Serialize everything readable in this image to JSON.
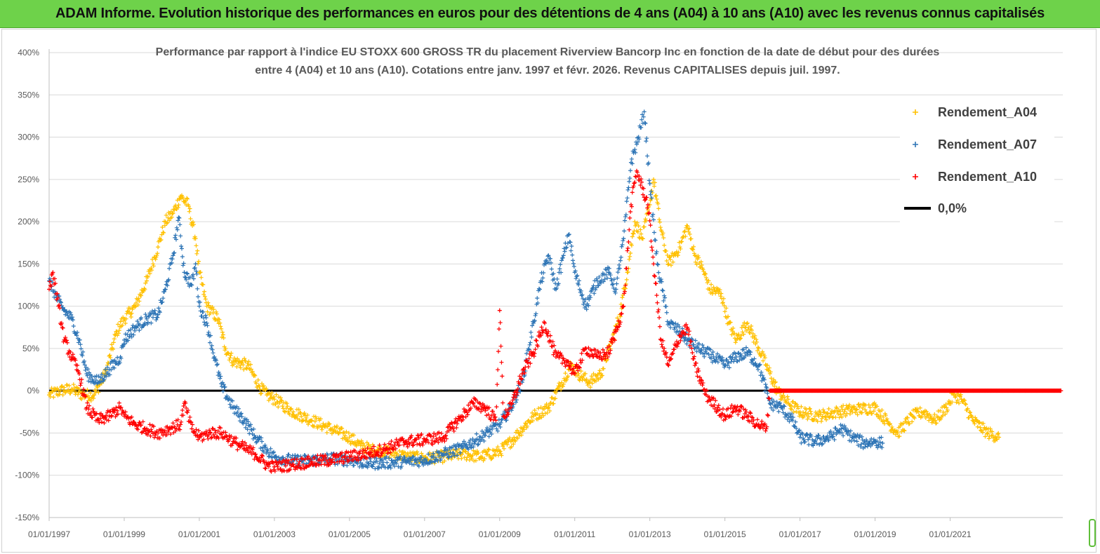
{
  "banner": {
    "text": "ADAM Informe. Evolution historique des performances en euros pour des détentions de 4 ans (A04) à 10 ans (A10) avec les revenus connus capitalisés"
  },
  "colors": {
    "banner": "#6ed24a",
    "A04": "#ffc000",
    "A07": "#2e75b6",
    "A10": "#ff0000",
    "zero": "#000000"
  },
  "chart_data": {
    "type": "scatter",
    "title_line1": "Performance par rapport à l'indice EU STOXX 600 GROSS TR  du placement Riverview Bancorp Inc en fonction de la date de début pour des durées",
    "title_line2": "entre 4 (A04) et 10 ans (A10). Cotations entre janv. 1997 et févr. 2026. Revenus CAPITALISES depuis juil. 1997.",
    "ylim": [
      -150,
      400
    ],
    "xlim": [
      1997.0,
      2024.0
    ],
    "y_ticks": [
      "-150%",
      "-100%",
      "-50%",
      "0%",
      "50%",
      "100%",
      "150%",
      "200%",
      "250%",
      "300%",
      "350%",
      "400%"
    ],
    "x_ticks": [
      "01/01/1997",
      "01/01/1999",
      "01/01/2001",
      "01/01/2003",
      "01/01/2005",
      "01/01/2007",
      "01/01/2009",
      "01/01/2011",
      "01/01/2013",
      "01/01/2015",
      "01/01/2017",
      "01/01/2019",
      "01/01/2021"
    ],
    "gridlines": "horizontal",
    "legend_position": "top-right",
    "series": [
      {
        "name": "Rendement_A04",
        "marker": "+",
        "points": [
          [
            1997.0,
            -5
          ],
          [
            1997.3,
            0
          ],
          [
            1997.6,
            2
          ],
          [
            1997.9,
            -5
          ],
          [
            1998.2,
            -5
          ],
          [
            1998.5,
            20
          ],
          [
            1998.8,
            70
          ],
          [
            1999.0,
            85
          ],
          [
            1999.3,
            100
          ],
          [
            1999.6,
            130
          ],
          [
            1999.9,
            170
          ],
          [
            2000.1,
            200
          ],
          [
            2000.3,
            210
          ],
          [
            2000.5,
            230
          ],
          [
            2000.7,
            220
          ],
          [
            2000.9,
            180
          ],
          [
            2001.0,
            140
          ],
          [
            2001.2,
            100
          ],
          [
            2001.5,
            85
          ],
          [
            2001.7,
            50
          ],
          [
            2001.9,
            35
          ],
          [
            2002.3,
            30
          ],
          [
            2002.6,
            5
          ],
          [
            2002.8,
            -5
          ],
          [
            2003.0,
            -10
          ],
          [
            2003.5,
            -25
          ],
          [
            2004.0,
            -35
          ],
          [
            2004.5,
            -45
          ],
          [
            2005.0,
            -55
          ],
          [
            2005.3,
            -65
          ],
          [
            2005.6,
            -70
          ],
          [
            2006.0,
            -72
          ],
          [
            2006.5,
            -78
          ],
          [
            2007.0,
            -80
          ],
          [
            2007.5,
            -78
          ],
          [
            2008.0,
            -75
          ],
          [
            2008.5,
            -78
          ],
          [
            2009.0,
            -72
          ],
          [
            2009.3,
            -60
          ],
          [
            2009.6,
            -45
          ],
          [
            2009.9,
            -30
          ],
          [
            2010.3,
            -20
          ],
          [
            2010.6,
            5
          ],
          [
            2010.9,
            30
          ],
          [
            2011.1,
            20
          ],
          [
            2011.4,
            10
          ],
          [
            2011.7,
            20
          ],
          [
            2012.0,
            60
          ],
          [
            2012.2,
            90
          ],
          [
            2012.4,
            140
          ],
          [
            2012.6,
            200
          ],
          [
            2012.8,
            180
          ],
          [
            2013.0,
            220
          ],
          [
            2013.1,
            250
          ],
          [
            2013.3,
            190
          ],
          [
            2013.5,
            150
          ],
          [
            2013.8,
            170
          ],
          [
            2014.0,
            195
          ],
          [
            2014.2,
            160
          ],
          [
            2014.4,
            145
          ],
          [
            2014.6,
            120
          ],
          [
            2014.9,
            115
          ],
          [
            2015.1,
            80
          ],
          [
            2015.3,
            60
          ],
          [
            2015.6,
            80
          ],
          [
            2015.9,
            50
          ],
          [
            2016.1,
            30
          ],
          [
            2016.4,
            0
          ],
          [
            2016.7,
            -15
          ],
          [
            2017.0,
            -25
          ],
          [
            2017.5,
            -30
          ],
          [
            2018.0,
            -25
          ],
          [
            2018.5,
            -22
          ],
          [
            2019.0,
            -20
          ],
          [
            2019.3,
            -35
          ],
          [
            2019.6,
            -50
          ],
          [
            2020.0,
            -30
          ],
          [
            2020.3,
            -25
          ],
          [
            2020.6,
            -35
          ],
          [
            2020.9,
            -20
          ],
          [
            2021.1,
            -5
          ],
          [
            2021.3,
            -10
          ],
          [
            2021.6,
            -35
          ],
          [
            2022.0,
            -50
          ],
          [
            2022.3,
            -55
          ]
        ]
      },
      {
        "name": "Rendement_A07",
        "marker": "+",
        "points": [
          [
            1997.0,
            130
          ],
          [
            1997.2,
            110
          ],
          [
            1997.4,
            95
          ],
          [
            1997.6,
            85
          ],
          [
            1997.8,
            60
          ],
          [
            1998.0,
            20
          ],
          [
            1998.3,
            10
          ],
          [
            1998.6,
            25
          ],
          [
            1998.9,
            40
          ],
          [
            1999.0,
            60
          ],
          [
            1999.3,
            75
          ],
          [
            1999.6,
            85
          ],
          [
            1999.9,
            90
          ],
          [
            2000.1,
            120
          ],
          [
            2000.3,
            160
          ],
          [
            2000.45,
            205
          ],
          [
            2000.6,
            140
          ],
          [
            2000.8,
            125
          ],
          [
            2000.9,
            150
          ],
          [
            2001.0,
            100
          ],
          [
            2001.2,
            80
          ],
          [
            2001.4,
            40
          ],
          [
            2001.6,
            5
          ],
          [
            2001.9,
            -20
          ],
          [
            2002.2,
            -35
          ],
          [
            2002.5,
            -55
          ],
          [
            2002.8,
            -70
          ],
          [
            2003.0,
            -78
          ],
          [
            2003.5,
            -83
          ],
          [
            2004.0,
            -82
          ],
          [
            2004.5,
            -80
          ],
          [
            2005.0,
            -82
          ],
          [
            2005.5,
            -86
          ],
          [
            2006.0,
            -85
          ],
          [
            2006.5,
            -84
          ],
          [
            2007.0,
            -82
          ],
          [
            2007.5,
            -75
          ],
          [
            2008.0,
            -68
          ],
          [
            2008.5,
            -55
          ],
          [
            2009.0,
            -40
          ],
          [
            2009.3,
            -20
          ],
          [
            2009.6,
            10
          ],
          [
            2009.9,
            80
          ],
          [
            2010.1,
            130
          ],
          [
            2010.3,
            160
          ],
          [
            2010.5,
            120
          ],
          [
            2010.7,
            160
          ],
          [
            2010.85,
            185
          ],
          [
            2011.0,
            140
          ],
          [
            2011.3,
            100
          ],
          [
            2011.6,
            130
          ],
          [
            2011.9,
            140
          ],
          [
            2012.1,
            120
          ],
          [
            2012.3,
            180
          ],
          [
            2012.5,
            270
          ],
          [
            2012.7,
            300
          ],
          [
            2012.85,
            330
          ],
          [
            2013.0,
            245
          ],
          [
            2013.2,
            150
          ],
          [
            2013.5,
            80
          ],
          [
            2013.8,
            70
          ],
          [
            2014.0,
            60
          ],
          [
            2014.3,
            50
          ],
          [
            2014.7,
            40
          ],
          [
            2015.0,
            30
          ],
          [
            2015.3,
            40
          ],
          [
            2015.6,
            45
          ],
          [
            2015.9,
            30
          ],
          [
            2016.2,
            -15
          ],
          [
            2016.5,
            -20
          ],
          [
            2016.8,
            -35
          ],
          [
            2017.0,
            -55
          ],
          [
            2017.4,
            -60
          ],
          [
            2017.8,
            -55
          ],
          [
            2018.1,
            -45
          ],
          [
            2018.4,
            -55
          ],
          [
            2018.7,
            -62
          ],
          [
            2019.0,
            -60
          ],
          [
            2019.2,
            -62
          ]
        ]
      },
      {
        "name": "Rendement_A10",
        "marker": "+",
        "points": [
          [
            1997.0,
            120
          ],
          [
            1997.1,
            140
          ],
          [
            1997.25,
            100
          ],
          [
            1997.4,
            60
          ],
          [
            1997.6,
            40
          ],
          [
            1997.8,
            20
          ],
          [
            1998.0,
            -20
          ],
          [
            1998.3,
            -35
          ],
          [
            1998.6,
            -30
          ],
          [
            1998.9,
            -20
          ],
          [
            1999.0,
            -30
          ],
          [
            1999.3,
            -40
          ],
          [
            1999.6,
            -45
          ],
          [
            1999.9,
            -50
          ],
          [
            2000.2,
            -45
          ],
          [
            2000.5,
            -40
          ],
          [
            2000.6,
            -15
          ],
          [
            2000.8,
            -45
          ],
          [
            2001.0,
            -55
          ],
          [
            2001.3,
            -50
          ],
          [
            2001.6,
            -50
          ],
          [
            2001.9,
            -60
          ],
          [
            2002.2,
            -68
          ],
          [
            2002.5,
            -75
          ],
          [
            2002.8,
            -88
          ],
          [
            2003.0,
            -90
          ],
          [
            2003.5,
            -87
          ],
          [
            2004.0,
            -84
          ],
          [
            2004.5,
            -82
          ],
          [
            2005.0,
            -78
          ],
          [
            2005.5,
            -74
          ],
          [
            2006.0,
            -68
          ],
          [
            2006.5,
            -60
          ],
          [
            2007.0,
            -58
          ],
          [
            2007.5,
            -55
          ],
          [
            2008.0,
            -30
          ],
          [
            2008.3,
            -15
          ],
          [
            2008.6,
            -20
          ],
          [
            2008.9,
            -35
          ],
          [
            2009.0,
            95
          ],
          [
            2009.1,
            -30
          ],
          [
            2009.3,
            -20
          ],
          [
            2009.6,
            20
          ],
          [
            2009.9,
            45
          ],
          [
            2010.2,
            80
          ],
          [
            2010.5,
            40
          ],
          [
            2010.8,
            35
          ],
          [
            2011.0,
            20
          ],
          [
            2011.3,
            50
          ],
          [
            2011.6,
            40
          ],
          [
            2011.9,
            45
          ],
          [
            2012.1,
            70
          ],
          [
            2012.3,
            100
          ],
          [
            2012.5,
            220
          ],
          [
            2012.65,
            260
          ],
          [
            2012.8,
            240
          ],
          [
            2012.95,
            220
          ],
          [
            2013.1,
            150
          ],
          [
            2013.3,
            60
          ],
          [
            2013.5,
            30
          ],
          [
            2013.8,
            65
          ],
          [
            2014.0,
            75
          ],
          [
            2014.2,
            30
          ],
          [
            2014.5,
            -5
          ],
          [
            2014.8,
            -20
          ],
          [
            2015.0,
            -30
          ],
          [
            2015.3,
            -20
          ],
          [
            2015.6,
            -30
          ],
          [
            2015.9,
            -40
          ],
          [
            2016.1,
            -45
          ],
          [
            2016.2,
            0
          ],
          [
            2017.0,
            0
          ],
          [
            2018.0,
            0
          ],
          [
            2019.0,
            0
          ],
          [
            2020.0,
            0
          ],
          [
            2021.0,
            0
          ],
          [
            2022.0,
            0
          ],
          [
            2023.0,
            0
          ],
          [
            2023.95,
            0
          ]
        ]
      },
      {
        "name": "0,0%",
        "marker": "line",
        "points": [
          [
            1997.0,
            0
          ],
          [
            2023.95,
            0
          ]
        ]
      }
    ]
  }
}
